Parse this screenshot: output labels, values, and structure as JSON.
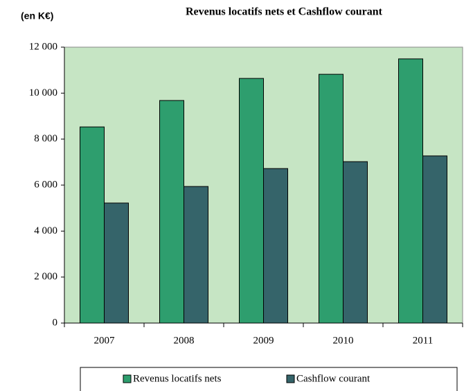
{
  "chart_data": {
    "type": "bar",
    "title": "Revenus locatifs nets et Cashflow courant",
    "unit_label": "(en K€)",
    "categories": [
      "2007",
      "2008",
      "2009",
      "2010",
      "2011"
    ],
    "series": [
      {
        "name": "Revenus locatifs nets",
        "color": "#2e9e6e",
        "values": [
          8530,
          9680,
          10640,
          10820,
          11490
        ]
      },
      {
        "name": "Cashflow courant",
        "color": "#35646a",
        "values": [
          5220,
          5940,
          6720,
          7020,
          7270
        ]
      }
    ],
    "ylim": [
      0,
      12000
    ],
    "yticks": [
      0,
      {
        "value": 2000,
        "label": "2 000"
      },
      {
        "value": 4000,
        "label": "4 000"
      },
      {
        "value": 6000,
        "label": "6 000"
      },
      {
        "value": 8000,
        "label": "8 000"
      },
      {
        "value": 10000,
        "label": "10 000"
      },
      {
        "value": 12000,
        "label": "12 000"
      }
    ],
    "plot_background": "#c6e5c4",
    "legend": "bottom"
  }
}
